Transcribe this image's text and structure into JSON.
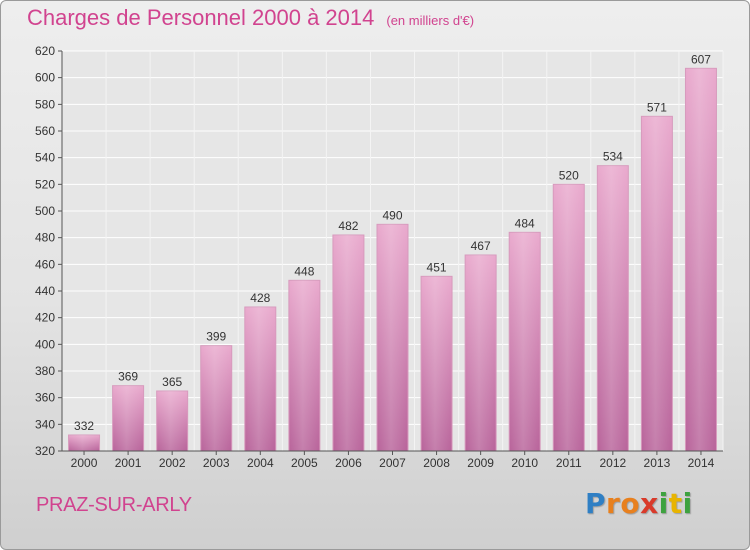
{
  "chart_data": {
    "type": "bar",
    "title": "Charges de Personnel 2000 à 2014",
    "unit": "(en milliers d'€)",
    "xlabel": "",
    "ylabel": "",
    "categories": [
      "2000",
      "2001",
      "2002",
      "2003",
      "2004",
      "2005",
      "2006",
      "2007",
      "2008",
      "2009",
      "2010",
      "2011",
      "2012",
      "2013",
      "2014"
    ],
    "values": [
      332,
      369,
      365,
      399,
      428,
      448,
      482,
      490,
      451,
      467,
      484,
      520,
      534,
      571,
      607
    ],
    "ylim": [
      320,
      620
    ],
    "yticks": [
      320,
      340,
      360,
      380,
      400,
      420,
      440,
      460,
      480,
      500,
      520,
      540,
      560,
      580,
      600,
      620
    ],
    "grid": true,
    "data_labels": true,
    "bar_color": "#c9679e"
  },
  "footer": {
    "commune": "PRAZ-SUR-ARLY"
  },
  "logo": {
    "letters": [
      "P",
      "r",
      "o",
      "x",
      "i",
      "t",
      "i"
    ],
    "colors": [
      "#2f7fc4",
      "#e8801e",
      "#e8801e",
      "#d93a2a",
      "#3ea23f",
      "#e8b400",
      "#3ea23f"
    ]
  }
}
